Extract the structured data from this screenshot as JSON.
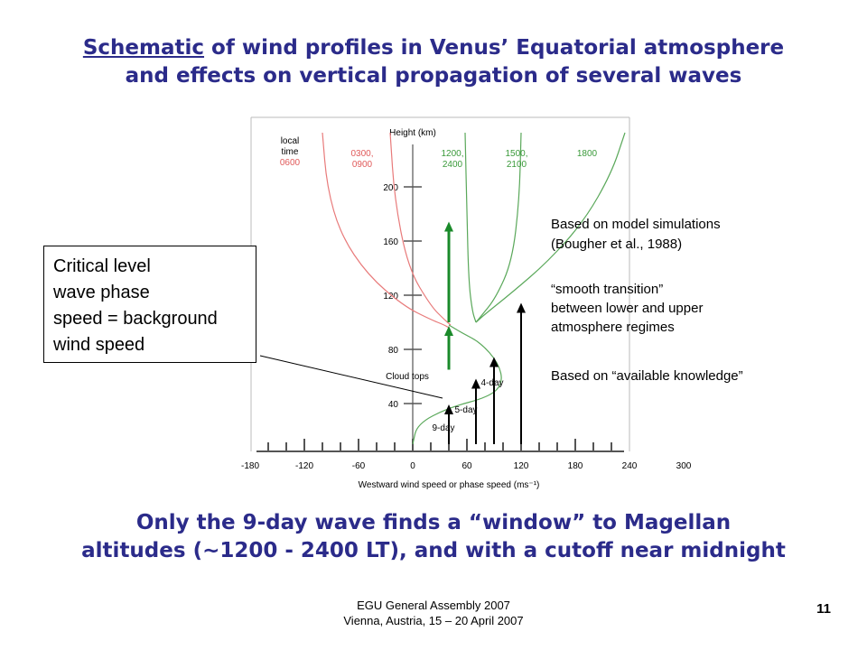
{
  "title": {
    "underlined": "Schematic",
    "line1_rest": " of wind profiles in Venus’ Equatorial atmosphere",
    "line2": "and effects on vertical propagation of several waves"
  },
  "callout": {
    "lines": [
      "Critical level",
      "wave phase",
      "speed = background",
      "wind speed"
    ]
  },
  "side_notes": {
    "note1_line1": "Based on model simulations",
    "note1_line2": "(Bougher et al., 1988)",
    "note2_line1": "“smooth transition”",
    "note2_line2": "between lower and upper",
    "note2_line3": "atmosphere regimes",
    "note3": "Based on “available knowledge”"
  },
  "bottom": {
    "line1": "Only the 9-day wave finds a “window” to Magellan",
    "line2": "altitudes (~1200 - 2400 LT), and with a cutoff near midnight"
  },
  "footer": {
    "line1": "EGU General Assembly 2007",
    "line2": "Vienna, Austria, 15 – 20 April 2007",
    "page": "11"
  },
  "chart_data": {
    "type": "line",
    "xlabel": "Westward wind speed or phase speed (ms⁻¹)",
    "ylabel": "Height (km)",
    "x_ticks": [
      -180,
      -120,
      -60,
      0,
      60,
      120,
      180,
      240,
      300
    ],
    "y_ticks": [
      40,
      80,
      120,
      160,
      200
    ],
    "xlim": [
      -210,
      310
    ],
    "ylim": [
      10,
      240
    ],
    "colors": {
      "red": "#e87a7a",
      "green": "#5aa85a",
      "dark_green": "#1a8a2a",
      "black": "#000000"
    },
    "series": [
      {
        "name": "local time 0600",
        "color": "red",
        "x": [
          -100,
          -95,
          -80,
          -50,
          -10,
          20,
          35,
          40
        ],
        "y": [
          240,
          200,
          165,
          135,
          112,
          102,
          98,
          96
        ]
      },
      {
        "name": "0300, 0900",
        "color": "red",
        "x": [
          -25,
          -20,
          -5,
          20,
          35,
          42
        ],
        "y": [
          240,
          190,
          140,
          112,
          102,
          98
        ]
      },
      {
        "name": "1200, 2400",
        "color": "green",
        "x": [
          58,
          60,
          62,
          66,
          70
        ],
        "y": [
          240,
          180,
          130,
          108,
          100
        ]
      },
      {
        "name": "1500, 2100",
        "color": "green",
        "x": [
          120,
          118,
          110,
          92,
          75,
          70
        ],
        "y": [
          240,
          190,
          145,
          118,
          104,
          100
        ]
      },
      {
        "name": "1800",
        "color": "green",
        "x": [
          235,
          220,
          190,
          150,
          110,
          80,
          70
        ],
        "y": [
          240,
          210,
          175,
          145,
          122,
          106,
          100
        ]
      },
      {
        "name": "lower atmosphere",
        "color": "green",
        "x": [
          40,
          45,
          55,
          75,
          95,
          100,
          85,
          40,
          5,
          0
        ],
        "y": [
          98,
          96,
          92,
          85,
          70,
          55,
          45,
          37,
          25,
          10
        ]
      }
    ],
    "annotations": [
      "local",
      "time",
      "0600",
      "0300,",
      "0900",
      "1200,",
      "2400",
      "1500,",
      "2100",
      "1800",
      "Cloud tops"
    ],
    "waves": [
      {
        "label": "9-day",
        "x": 40,
        "y_from": 10,
        "y_to": 38,
        "color": "black"
      },
      {
        "label": "5-day",
        "x": 70,
        "y_from": 10,
        "y_to": 57,
        "color": "black"
      },
      {
        "label": "4-day",
        "x": 90,
        "y_from": 10,
        "y_to": 73,
        "color": "black"
      },
      {
        "label": "",
        "x": 120,
        "y_from": 10,
        "y_to": 113,
        "color": "black"
      },
      {
        "label": "",
        "x": 40,
        "y_from": 65,
        "y_to": 96,
        "color": "dark_green"
      },
      {
        "label": "",
        "x": 40,
        "y_from": 100,
        "y_to": 173,
        "color": "dark_green"
      }
    ]
  }
}
